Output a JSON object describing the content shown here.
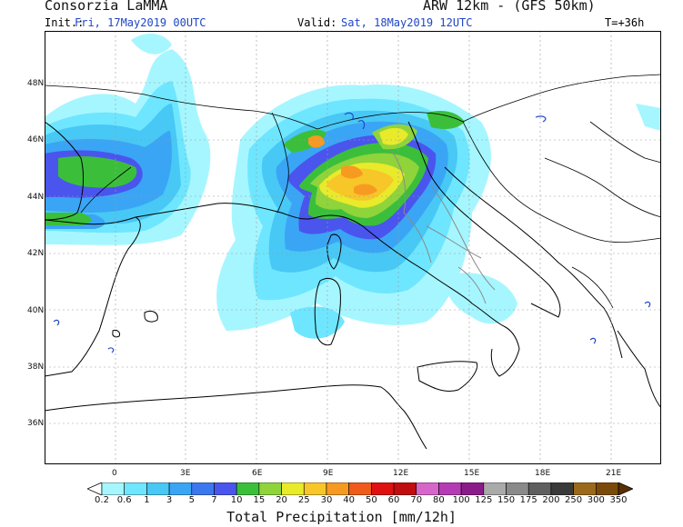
{
  "header": {
    "brand": "Consorzia LaMMA",
    "model": "ARW 12km - (GFS 50km)",
    "init_label": "Init.:",
    "init_value": "Fri, 17May2019 00UTC",
    "valid_label": "Valid:",
    "valid_value": "Sat, 18May2019 12UTC",
    "lead_time": "T=+36h"
  },
  "map": {
    "lat_labels": [
      "48N",
      "46N",
      "44N",
      "42N",
      "40N",
      "38N",
      "36N"
    ],
    "lon_labels": [
      "0",
      "3E",
      "6E",
      "9E",
      "12E",
      "15E",
      "18E",
      "21E"
    ],
    "colors": {
      "sea": "#ffffff",
      "coast": "#000000",
      "border": "#000000",
      "italy_border": "#8a8a8a",
      "lake": "#1f45c8",
      "grid": "#9a9a9a"
    }
  },
  "legend": {
    "title": "Total Precipitation [mm/12h]",
    "levels": [
      "0.2",
      "0.6",
      "1",
      "3",
      "5",
      "7",
      "10",
      "15",
      "20",
      "25",
      "30",
      "40",
      "50",
      "60",
      "70",
      "80",
      "100",
      "125",
      "150",
      "175",
      "200",
      "250",
      "300",
      "350"
    ],
    "colors": [
      "#a6f6ff",
      "#6ee6ff",
      "#48c8f5",
      "#3aa5f5",
      "#3b78f0",
      "#4a55ee",
      "#3bbf3b",
      "#8fd43a",
      "#e9ea2a",
      "#f7c628",
      "#f79a22",
      "#f05a1a",
      "#df1010",
      "#c00d0d",
      "#d666c9",
      "#b43bb4",
      "#8a1c8a",
      "#aaaaaa",
      "#8a8a8a",
      "#5f5f5f",
      "#3a3a3a",
      "#9a6a1a",
      "#7a4a0a",
      "#5a2f05"
    ]
  }
}
